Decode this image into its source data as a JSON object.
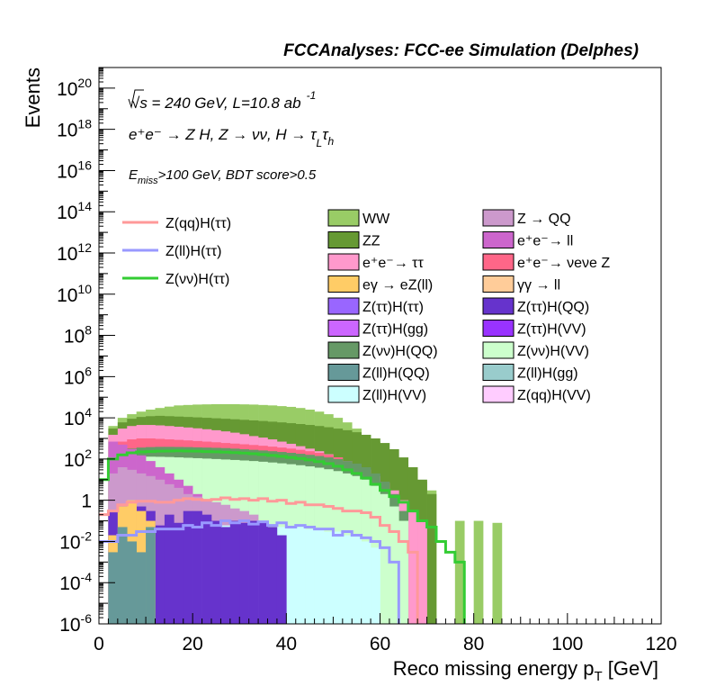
{
  "header": {
    "title": "FCCAnalyses: FCC-ee Simulation (Delphes)"
  },
  "annotations": {
    "energy": "√s = 240 GeV, L=10.8 ab",
    "energy_exp": "-1",
    "process": "e⁺e⁻ → Z H, Z → νν, H → τ",
    "process_sub1": "L",
    "process_tau2": "τ",
    "process_sub2": "h",
    "cut": "E",
    "cut_sub": "miss",
    "cut_rest": ">100 GeV, BDT score>0.5"
  },
  "chart_data": {
    "type": "histogram",
    "title": "FCCAnalyses: FCC-ee Simulation (Delphes)",
    "xlabel": "Reco missing energy p",
    "xlabel_sub": "T",
    "xlabel_unit": " [GeV]",
    "ylabel": "Events",
    "xlim": [
      0,
      120
    ],
    "ylim": [
      1e-06,
      1e+21
    ],
    "log_y": true,
    "grid": false,
    "bin_width": 2,
    "x_ticks": [
      "0",
      "20",
      "40",
      "60",
      "80",
      "100",
      "120"
    ],
    "y_ticks": [
      {
        "base": "10",
        "exp": "-6",
        "value": 1e-06
      },
      {
        "base": "10",
        "exp": "-4",
        "value": 0.0001
      },
      {
        "base": "10",
        "exp": "-2",
        "value": 0.01
      },
      {
        "base": "1",
        "exp": "",
        "value": 1
      },
      {
        "base": "10",
        "exp": "2",
        "value": 100.0
      },
      {
        "base": "10",
        "exp": "4",
        "value": 10000.0
      },
      {
        "base": "10",
        "exp": "6",
        "value": 1000000.0
      },
      {
        "base": "10",
        "exp": "8",
        "value": 100000000.0
      },
      {
        "base": "10",
        "exp": "10",
        "value": 10000000000.0
      },
      {
        "base": "10",
        "exp": "12",
        "value": 1000000000000.0
      },
      {
        "base": "10",
        "exp": "14",
        "value": 100000000000000.0
      },
      {
        "base": "10",
        "exp": "16",
        "value": 1e+16
      },
      {
        "base": "10",
        "exp": "18",
        "value": 1e+18
      },
      {
        "base": "10",
        "exp": "20",
        "value": 1e+20
      }
    ],
    "stack_envelopes": [
      {
        "name": "WW",
        "color": "#99cc66",
        "values": [
          0,
          4000,
          10000,
          15000,
          20000,
          25000,
          30000,
          35000,
          40000,
          42000,
          44000,
          45000,
          46000,
          46000,
          46000,
          45000,
          44000,
          42000,
          40000,
          37000,
          34000,
          30000,
          25000,
          20000,
          15000,
          10000,
          6000,
          3000,
          1500,
          700,
          300,
          120,
          50,
          20,
          8,
          3,
          0,
          0,
          0.1,
          0,
          0.1,
          0,
          0.08,
          0,
          0,
          0,
          0,
          0,
          0,
          0,
          0,
          0,
          0,
          0,
          0,
          0,
          0,
          0,
          0,
          0
        ]
      },
      {
        "name": "ZZ",
        "color": "#669933",
        "values": [
          0,
          3000,
          6000,
          9000,
          11000,
          12000,
          12500,
          12000,
          11500,
          11000,
          10500,
          10000,
          9500,
          9000,
          8500,
          8000,
          7500,
          7000,
          6500,
          6000,
          5500,
          5000,
          4500,
          4000,
          3500,
          3000,
          2500,
          2000,
          1500,
          1000,
          600,
          300,
          120,
          40,
          10,
          2,
          0,
          0,
          0,
          0,
          0,
          0,
          0,
          0,
          0,
          0,
          0,
          0,
          0,
          0,
          0,
          0,
          0,
          0,
          0,
          0,
          0,
          0,
          0,
          0
        ]
      },
      {
        "name": "e⁺e⁻ → ττ",
        "color": "#ff99cc",
        "values": [
          0,
          1500,
          3000,
          4000,
          4500,
          4500,
          4300,
          4000,
          3700,
          3400,
          3100,
          2800,
          2500,
          2200,
          1900,
          1600,
          1300,
          1100,
          900,
          700,
          550,
          420,
          320,
          240,
          170,
          120,
          80,
          50,
          30,
          15,
          7,
          3,
          1,
          0.3,
          0.1,
          0,
          0,
          0,
          0,
          0,
          0,
          0,
          0,
          0,
          0,
          0,
          0,
          0,
          0,
          0,
          0,
          0,
          0,
          0,
          0,
          0,
          0,
          0,
          0,
          0
        ]
      },
      {
        "name": "e⁺e⁻ → νeνe Z",
        "color": "#ff6688",
        "values": [
          0,
          400,
          700,
          900,
          1000,
          1000,
          950,
          900,
          850,
          800,
          750,
          700,
          650,
          600,
          560,
          520,
          480,
          440,
          400,
          360,
          320,
          280,
          240,
          200,
          160,
          120,
          80,
          50,
          20,
          5,
          1,
          0.2,
          0.05,
          0,
          0,
          0,
          0,
          0,
          0,
          0,
          0,
          0,
          0,
          0,
          0,
          0,
          0,
          0,
          0,
          0,
          0,
          0,
          0,
          0,
          0,
          0,
          0,
          0,
          0,
          0
        ]
      },
      {
        "name": "Z(νν)H(QQ)",
        "color": "#669966",
        "values": [
          0,
          150,
          250,
          320,
          360,
          380,
          390,
          390,
          385,
          380,
          370,
          360,
          350,
          340,
          320,
          300,
          280,
          260,
          240,
          220,
          200,
          180,
          160,
          140,
          120,
          100,
          80,
          60,
          40,
          20,
          8,
          2,
          0.3,
          0,
          0,
          0,
          0,
          0,
          0,
          0,
          0,
          0,
          0,
          0,
          0,
          0,
          0,
          0,
          0,
          0,
          0,
          0,
          0,
          0,
          0,
          0,
          0,
          0,
          0,
          0
        ]
      },
      {
        "name": "Z(νν)H(VV)",
        "color": "#ccffcc",
        "values": [
          0,
          60,
          100,
          120,
          130,
          130,
          128,
          125,
          120,
          115,
          110,
          105,
          100,
          95,
          90,
          85,
          80,
          74,
          68,
          62,
          56,
          50,
          44,
          38,
          32,
          26,
          20,
          15,
          10,
          5,
          2,
          0.5,
          0.1,
          0,
          0,
          0,
          0,
          0,
          0,
          0,
          0,
          0,
          0,
          0,
          0,
          0,
          0,
          0,
          0,
          0,
          0,
          0,
          0,
          0,
          0,
          0,
          0,
          0,
          0,
          0
        ]
      },
      {
        "name": "e⁺e⁻ → ll",
        "color": "#cc66cc",
        "values": [
          0,
          700,
          500,
          300,
          150,
          80,
          40,
          20,
          10,
          5,
          2,
          1,
          0.5,
          0.3,
          0.2,
          0.1,
          0.05,
          0.02,
          0,
          0,
          0,
          0,
          0,
          0,
          0,
          0,
          0,
          0,
          0,
          0,
          0,
          0,
          0,
          0,
          0,
          0,
          0,
          0,
          0,
          0,
          0,
          0,
          0,
          0,
          0,
          0,
          0,
          0,
          0,
          0,
          0,
          0,
          0,
          0,
          0,
          0,
          0,
          0,
          0,
          0
        ]
      },
      {
        "name": "Z → QQ",
        "color": "#cc99cc",
        "values": [
          0,
          20,
          40,
          30,
          20,
          15,
          10,
          6,
          4,
          2,
          1.5,
          1,
          0.8,
          0.6,
          0.4,
          0.3,
          0.2,
          0.1,
          0.05,
          0,
          0,
          0,
          0,
          0,
          0,
          0,
          0,
          0,
          0,
          0,
          0,
          0,
          0,
          0,
          0,
          0,
          0,
          0,
          0,
          0,
          0,
          0,
          0,
          0,
          0,
          0,
          0,
          0,
          0,
          0,
          0,
          0,
          0,
          0,
          0,
          0,
          0,
          0,
          0,
          0
        ]
      },
      {
        "name": "Z(ll)H(VV)",
        "color": "#ccffff",
        "values": [
          0,
          0.01,
          0.02,
          0.03,
          0.03,
          0.04,
          0.04,
          0.05,
          0.05,
          0.05,
          0.05,
          0.06,
          0.06,
          0.06,
          0.06,
          0.06,
          0.06,
          0.06,
          0.05,
          0.05,
          0.05,
          0.05,
          0.04,
          0.04,
          0.03,
          0.03,
          0.02,
          0.02,
          0.01,
          0.005,
          0,
          0,
          0,
          0,
          0,
          0,
          0,
          0,
          0,
          0,
          0,
          0,
          0,
          0,
          0,
          0,
          0,
          0,
          0,
          0,
          0,
          0,
          0,
          0,
          0,
          0,
          0,
          0,
          0,
          0
        ]
      },
      {
        "name": "Z(ττ)H(QQ)",
        "color": "#6633cc",
        "values": [
          0,
          0.3,
          0.5,
          0.8,
          0.5,
          0.3,
          0.06,
          0.2,
          0.08,
          0.3,
          0.3,
          0.2,
          0.1,
          0.05,
          0.1,
          0.08,
          0.1,
          0.1,
          0.05,
          0.02,
          0,
          0,
          0,
          0,
          0,
          0,
          0,
          0,
          0,
          0,
          0,
          0,
          0,
          0,
          0,
          0,
          0,
          0,
          0,
          0,
          0,
          0,
          0,
          0,
          0,
          0,
          0,
          0,
          0,
          0,
          0,
          0,
          0,
          0,
          0,
          0,
          0,
          0,
          0,
          0
        ]
      },
      {
        "name": "eγ → eZ(ll)",
        "color": "#ffcc66",
        "values": [
          0,
          0.02,
          0.5,
          1,
          0.3,
          0.1,
          0,
          0,
          0,
          0,
          0,
          0,
          0,
          0,
          0,
          0,
          0,
          0,
          0,
          0,
          0,
          0,
          0,
          0,
          0,
          0,
          0,
          0,
          0,
          0,
          0,
          0,
          0,
          0,
          0,
          0,
          0,
          0,
          0,
          0,
          0,
          0,
          0,
          0,
          0,
          0,
          0,
          0,
          0,
          0,
          0,
          0,
          0,
          0,
          0,
          0,
          0,
          0,
          0,
          0
        ]
      },
      {
        "name": "Z(ll)H(QQ)",
        "color": "#669999",
        "values": [
          0,
          0.003,
          0.05,
          0.01,
          0.003,
          0.05,
          0,
          0,
          0,
          0,
          0,
          0,
          0,
          0,
          0,
          0,
          0,
          0,
          0,
          0,
          0,
          0,
          0,
          0,
          0,
          0,
          0,
          0,
          0,
          0,
          0,
          0,
          0,
          0,
          0,
          0,
          0,
          0,
          0,
          0,
          0,
          0,
          0,
          0,
          0,
          0,
          0,
          0,
          0,
          0,
          0,
          0,
          0,
          0,
          0,
          0,
          0,
          0,
          0,
          0
        ]
      }
    ],
    "signal_lines": [
      {
        "name": "Z(qq)H(ττ)",
        "color": "#ff9999",
        "values": [
          0.2,
          0.3,
          0.6,
          0.8,
          0.9,
          0.9,
          0.8,
          0.8,
          1.0,
          1.2,
          1.1,
          1.0,
          1.1,
          1.3,
          1.1,
          1.2,
          1.0,
          1.2,
          0.9,
          1.0,
          0.7,
          0.8,
          0.6,
          0.6,
          0.5,
          0.4,
          0.3,
          0.3,
          0.25,
          0.15,
          0.06,
          0.03,
          0.01,
          0.003,
          0,
          0,
          0,
          0,
          0,
          0,
          0,
          0,
          0,
          0,
          0,
          0,
          0,
          0,
          0,
          0,
          0,
          0,
          0,
          0,
          0,
          0,
          0,
          0,
          0,
          0
        ]
      },
      {
        "name": "Z(ll)H(ττ)",
        "color": "#9999ff",
        "values": [
          0.01,
          0.01,
          0.02,
          0.02,
          0.03,
          0.03,
          0.04,
          0.04,
          0.04,
          0.06,
          0.05,
          0.08,
          0.06,
          0.1,
          0.08,
          0.1,
          0.07,
          0.09,
          0.06,
          0.08,
          0.05,
          0.06,
          0.05,
          0.04,
          0.04,
          0.02,
          0.03,
          0.02,
          0.015,
          0.01,
          0.005,
          0.001,
          0,
          0,
          0,
          0,
          0,
          0,
          0,
          0,
          0,
          0,
          0,
          0,
          0,
          0,
          0,
          0,
          0,
          0,
          0,
          0,
          0,
          0,
          0,
          0,
          0,
          0,
          0,
          0
        ]
      },
      {
        "name": "Z(νν)H(ττ)",
        "color": "#33cc33",
        "values": [
          10,
          100,
          160,
          200,
          220,
          230,
          240,
          245,
          250,
          245,
          240,
          230,
          225,
          215,
          205,
          195,
          180,
          165,
          150,
          135,
          120,
          105,
          90,
          75,
          60,
          45,
          30,
          20,
          12,
          6,
          3,
          1.5,
          0.8,
          0.3,
          0.1,
          0.05,
          0.01,
          0.003,
          0.001,
          0,
          0,
          0,
          0,
          0,
          0,
          0,
          0,
          0,
          0,
          0,
          0,
          0,
          0,
          0,
          0,
          0,
          0,
          0,
          0,
          0
        ]
      }
    ]
  },
  "legend": {
    "signals": [
      {
        "label": "Z(qq)H(ττ)",
        "color": "#ff9999"
      },
      {
        "label": "Z(ll)H(ττ)",
        "color": "#9999ff"
      },
      {
        "label": "Z(νν)H(ττ)",
        "color": "#33cc33"
      }
    ],
    "col1": [
      {
        "label": "WW",
        "color": "#99cc66",
        "html": "WW"
      },
      {
        "label": "ZZ",
        "color": "#669933",
        "html": "ZZ"
      },
      {
        "label": "e⁺e⁻ → ττ",
        "color": "#ff99cc",
        "html": "e⁺e⁻→ ττ"
      },
      {
        "label": "eγ → eZ(ll)",
        "color": "#ffcc66",
        "html": "eγ → eZ(ll)"
      },
      {
        "label": "Z(ττ)H(ττ)",
        "color": "#9966ff",
        "html": "Z(ττ)H(ττ)"
      },
      {
        "label": "Z(ττ)H(gg)",
        "color": "#cc66ff",
        "html": "Z(ττ)H(gg)"
      },
      {
        "label": "Z(νν)H(QQ)",
        "color": "#669966",
        "html": "Z(νν)H(QQ)"
      },
      {
        "label": "Z(ll)H(QQ)",
        "color": "#669999",
        "html": "Z(ll)H(QQ)"
      },
      {
        "label": "Z(ll)H(VV)",
        "color": "#ccffff",
        "html": "Z(ll)H(VV)"
      }
    ],
    "col2": [
      {
        "label": "Z → QQ",
        "color": "#cc99cc",
        "html": "Z → QQ"
      },
      {
        "label": "e⁺e⁻→ ll",
        "color": "#cc66cc",
        "html": "e⁺e⁻→ ll"
      },
      {
        "label": "e⁺e⁻→ νeνe Z",
        "color": "#ff6688",
        "html": "e⁺e⁻→ νeνe Z"
      },
      {
        "label": "γγ → ll",
        "color": "#ffcc99",
        "html": "γγ → ll"
      },
      {
        "label": "Z(ττ)H(QQ)",
        "color": "#6633cc",
        "html": "Z(ττ)H(QQ)"
      },
      {
        "label": "Z(ττ)H(VV)",
        "color": "#9933ff",
        "html": "Z(ττ)H(VV)"
      },
      {
        "label": "Z(νν)H(VV)",
        "color": "#ccffcc",
        "html": "Z(νν)H(VV)"
      },
      {
        "label": "Z(ll)H(gg)",
        "color": "#99cccc",
        "html": "Z(ll)H(gg)"
      },
      {
        "label": "Z(qq)H(VV)",
        "color": "#ffccff",
        "html": "Z(qq)H(VV)"
      }
    ]
  }
}
